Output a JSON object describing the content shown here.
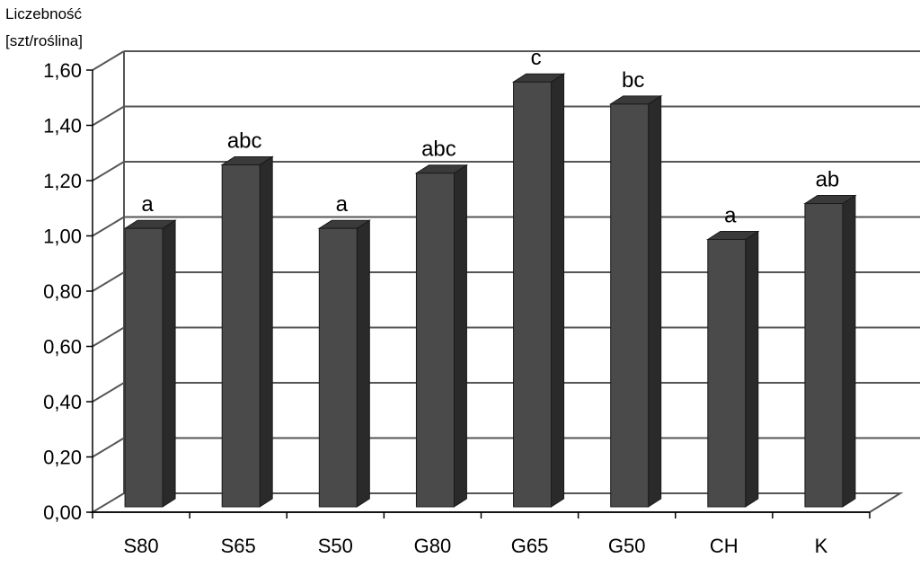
{
  "chart_data": {
    "type": "bar",
    "ylabel": [
      "Liczebność",
      "[szt/roślina]"
    ],
    "xlabel": "",
    "categories": [
      "S80",
      "S65",
      "S50",
      "G80",
      "G65",
      "G50",
      "CH",
      "K"
    ],
    "values": [
      1.04,
      1.27,
      1.04,
      1.24,
      1.57,
      1.49,
      1.0,
      1.13
    ],
    "significance_labels": [
      "a",
      "abc",
      "a",
      "abc",
      "c",
      "bc",
      "a",
      "ab"
    ],
    "ylim": [
      0,
      1.6
    ],
    "yticks": [
      "0,00",
      "0,20",
      "0,40",
      "0,60",
      "0,80",
      "1,00",
      "1,20",
      "1,40",
      "1,60"
    ],
    "grid": true,
    "style": "3d-column",
    "colors": {
      "bar_front": "#4a4a4a",
      "bar_side": "#2a2a2a",
      "bar_top": "#3a3a3a",
      "grid": "#555555",
      "background": "#ffffff"
    }
  }
}
